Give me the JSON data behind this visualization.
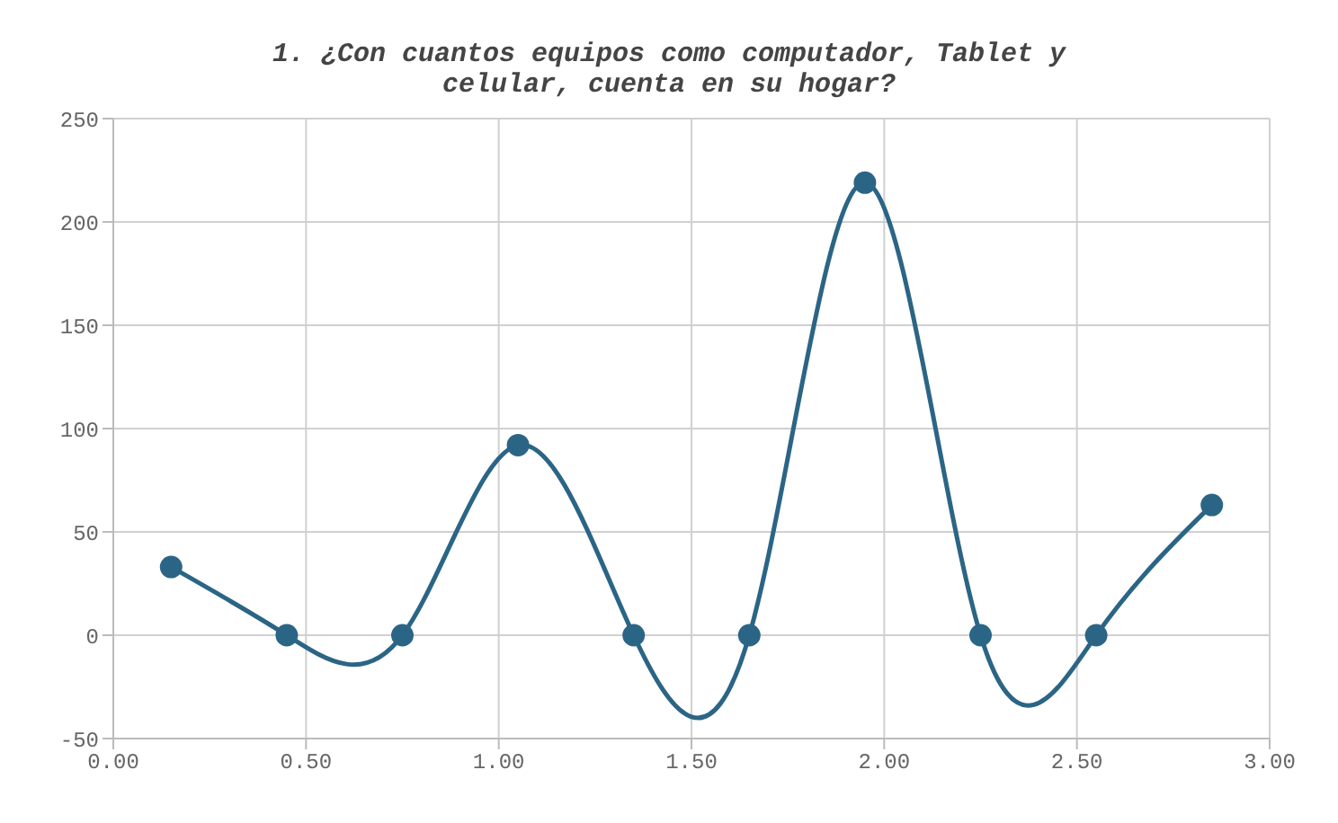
{
  "chart_data": {
    "type": "line",
    "title": "1. ¿Con cuantos equipos como computador, Tablet y celular, cuenta en su hogar?",
    "x": [
      0.15,
      0.45,
      0.75,
      1.05,
      1.35,
      1.65,
      1.95,
      2.25,
      2.55,
      2.85
    ],
    "series": [
      {
        "color": "#2b6586",
        "values": [
          33,
          0,
          0,
          92,
          0,
          0,
          219,
          0,
          0,
          63
        ]
      }
    ],
    "xlim": [
      0,
      3
    ],
    "xticks": [
      {
        "value": 0,
        "label": "0.00"
      },
      {
        "value": 0.5,
        "label": "0.50"
      },
      {
        "value": 1,
        "label": "1.00"
      },
      {
        "value": 1.5,
        "label": "1.50"
      },
      {
        "value": 2,
        "label": "2.00"
      },
      {
        "value": 2.5,
        "label": "2.50"
      },
      {
        "value": 3,
        "label": "3.00"
      }
    ],
    "ylim": [
      -50,
      250
    ],
    "yticks": [
      -50,
      0,
      50,
      100,
      150,
      200,
      250
    ],
    "grid": true,
    "marker": "circle",
    "line_style": "solid"
  }
}
